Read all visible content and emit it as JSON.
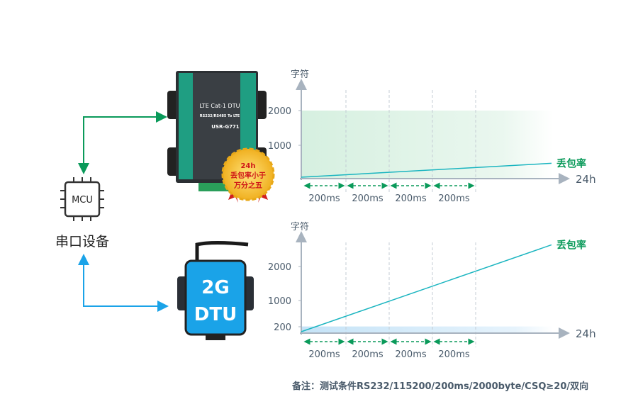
{
  "device": {
    "label": "串口设备",
    "chip": "MCU"
  },
  "lte_dtu": {
    "title": "LTE Cat-1 DTU",
    "subtitle": "RS232/RS485 To LTE",
    "model": "USR-G771",
    "badge": [
      "24h",
      "丢包率小于",
      "万分之五"
    ]
  },
  "gsm_dtu": {
    "line1": "2G",
    "line2": "DTU"
  },
  "charts": [
    {
      "ylabel": "字符",
      "xlabel": "24h",
      "yticks": [
        "2000",
        "1000"
      ],
      "series_label": "丢包率",
      "segments": [
        "200ms",
        "200ms",
        "200ms",
        "200ms"
      ],
      "band": 2000,
      "loss_start": 0,
      "loss_end": 450
    },
    {
      "ylabel": "字符",
      "xlabel": "24h",
      "yticks": [
        "2000",
        "1000",
        "200"
      ],
      "series_label": "丢包率",
      "segments": [
        "200ms",
        "200ms",
        "200ms",
        "200ms"
      ],
      "band": 200,
      "loss_start": 0,
      "loss_end": 2650
    }
  ],
  "note": "备注：测试条件RS232/115200/200ms/2000byte/CSQ≥20/双向",
  "colors": {
    "green": "#0a9a5a",
    "blue": "#1aa3e8",
    "teal": "#1bb5c0",
    "axis": "#a8b3bf",
    "text": "#4a5b6b"
  }
}
